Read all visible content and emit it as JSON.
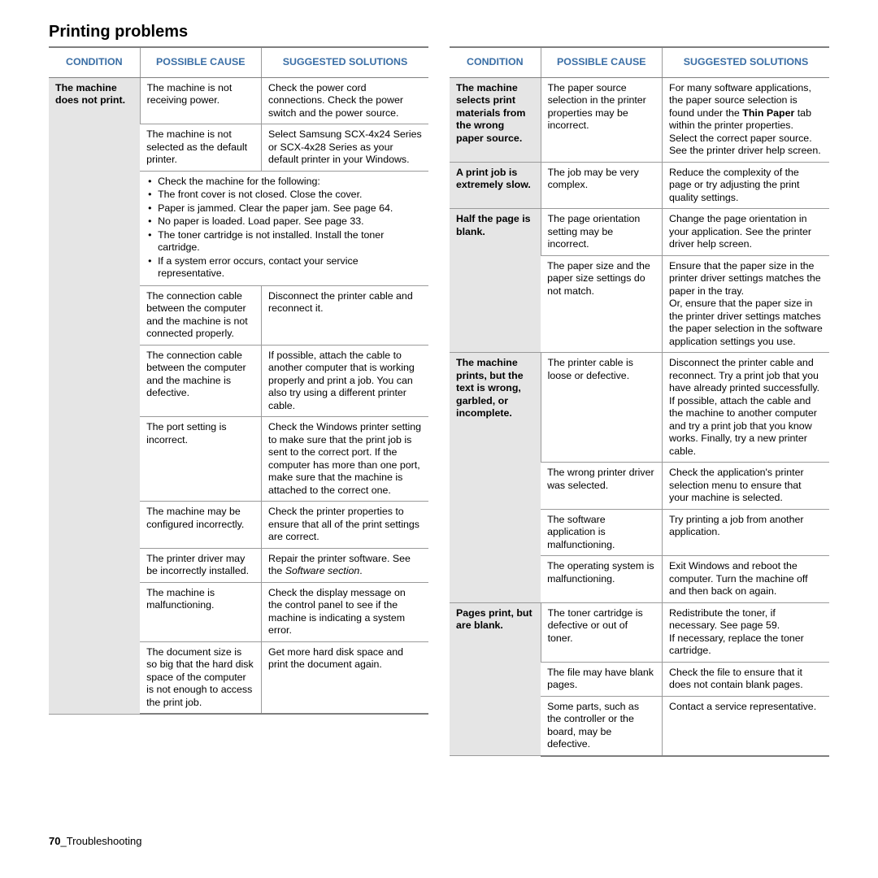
{
  "section_title": "Printing problems",
  "footer_page": "70",
  "footer_text": "_Troubleshooting",
  "headers": {
    "condition": "CONDITION",
    "cause": "POSSIBLE CAUSE",
    "solution": "SUGGESTED SOLUTIONS"
  },
  "colors": {
    "header_text": "#3a6ea5",
    "border": "#7f7f7f",
    "inner_border": "#9a9a9a",
    "cond_bg": "#e5e5e5",
    "text": "#000000",
    "page_bg": "#ffffff"
  },
  "left_table": {
    "condition": "The machine does not print.",
    "rows": [
      {
        "cause": "The machine is not receiving power.",
        "solution": "Check the power cord connections. Check the power switch and the power source."
      },
      {
        "cause": "The machine is not selected as the default printer.",
        "solution": "Select Samsung SCX-4x24 Series or SCX-4x28 Series as your default printer in your Windows."
      }
    ],
    "checklist_items": [
      "Check the machine for the following:",
      "The front cover is not closed. Close the cover.",
      "Paper is jammed. Clear the paper jam. See page 64.",
      "No paper is loaded. Load paper. See page 33.",
      "The toner cartridge is not installed. Install the toner cartridge.",
      "If a system error occurs, contact your service representative."
    ],
    "rows2": [
      {
        "cause": "The connection cable between the computer and the machine is not connected properly.",
        "solution": "Disconnect the printer cable and reconnect it."
      },
      {
        "cause": "The connection cable between the computer and the machine is defective.",
        "solution": "If possible, attach the cable to another computer that is working properly and print a job. You can also try using a different printer cable."
      },
      {
        "cause": "The port setting is incorrect.",
        "solution": "Check the Windows printer setting to make sure that the print job is sent to the correct port. If the computer has more than one port, make sure that the machine is attached to the correct one."
      },
      {
        "cause": "The machine may be configured incorrectly.",
        "solution": "Check the printer properties to ensure that all of the print settings are correct."
      },
      {
        "cause": "The printer driver may be incorrectly installed.",
        "solution_pre": "Repair the printer software. See the ",
        "solution_ital": "Software section",
        "solution_post": "."
      },
      {
        "cause": "The machine is malfunctioning.",
        "solution": "Check the display message on the control panel to see if the machine is indicating a system error."
      },
      {
        "cause": "The document size is so big that the hard disk space of the computer is not enough to access the print job.",
        "solution": "Get more hard disk space and print the document again."
      }
    ]
  },
  "right_table": {
    "groups": [
      {
        "condition": "The machine selects print materials from the wrong paper source.",
        "rows": [
          {
            "cause": "The paper source selection in the printer properties may be incorrect.",
            "solution_pre": "For many software applications, the paper source selection is found under the ",
            "solution_bold": "Thin Paper",
            "solution_post": " tab within the printer properties. Select the correct paper source. See the printer driver help screen."
          }
        ]
      },
      {
        "condition": "A print job is extremely slow.",
        "rows": [
          {
            "cause": "The job may be very complex.",
            "solution": "Reduce the complexity of the page or try adjusting the print quality settings."
          }
        ]
      },
      {
        "condition": "Half the page is blank.",
        "rows": [
          {
            "cause": "The page orientation setting may be incorrect.",
            "solution": "Change the page orientation in your application. See the printer driver help screen."
          },
          {
            "cause": "The paper size and the paper size settings do not match.",
            "solution": "Ensure that the paper size in the printer driver settings matches the paper in the tray.\nOr, ensure that the paper size in the printer driver settings matches the paper selection in the software application settings you use."
          }
        ]
      },
      {
        "condition": "The machine prints, but the text is wrong, garbled, or incomplete.",
        "rows": [
          {
            "cause": "The printer cable is loose or defective.",
            "solution": "Disconnect the printer cable and reconnect. Try a print job that you have already printed successfully. If possible, attach the cable and the machine to another computer and try a print job that you know works. Finally, try a new printer cable."
          },
          {
            "cause": "The wrong printer driver was selected.",
            "solution": "Check the application's printer selection menu to ensure that your machine is selected."
          },
          {
            "cause": "The software application is malfunctioning.",
            "solution": "Try printing a job from another application."
          },
          {
            "cause": "The operating system is malfunctioning.",
            "solution": "Exit Windows and reboot the computer. Turn the machine off and then back on again."
          }
        ]
      },
      {
        "condition": "Pages print, but are blank.",
        "rows": [
          {
            "cause": "The toner cartridge is defective or out of toner.",
            "solution": "Redistribute the toner, if necessary. See page 59.\nIf necessary, replace the toner cartridge."
          },
          {
            "cause": "The file may have blank pages.",
            "solution": "Check the file to ensure that it does not contain blank pages."
          },
          {
            "cause": "Some parts, such as the controller or the board, may be defective.",
            "solution": "Contact a service representative."
          }
        ]
      }
    ]
  }
}
